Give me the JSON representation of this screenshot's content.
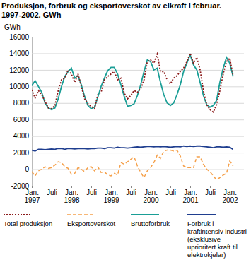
{
  "chart_data": {
    "type": "line",
    "title": "Produksjon, forbruk og eksportoverskot av elkraft i februar. 1997-2002. GWh",
    "y_label": "GWh",
    "categories": [
      "Jan. 1997",
      null,
      null,
      null,
      null,
      null,
      "Juli",
      null,
      null,
      null,
      null,
      null,
      "Jan. 1998",
      null,
      null,
      null,
      null,
      null,
      "Juli",
      null,
      null,
      null,
      null,
      null,
      "Jan. 1999",
      null,
      null,
      null,
      null,
      null,
      "Juli",
      null,
      null,
      null,
      null,
      null,
      "Jan. 2000",
      null,
      null,
      null,
      null,
      null,
      "Juli",
      null,
      null,
      null,
      null,
      null,
      "Jan. 2001",
      null,
      null,
      null,
      null,
      null,
      "Juli",
      null,
      null,
      null,
      null,
      null,
      "Jan. 2002",
      null
    ],
    "ylim": [
      -2000,
      16000
    ],
    "yticks": [
      -2000,
      0,
      2000,
      4000,
      6000,
      8000,
      10000,
      12000,
      14000,
      16000
    ],
    "grid": true,
    "legend": "bottom",
    "series": [
      {
        "name": "Total produksjon",
        "color": "#8b1a1a",
        "line_style": "dotted",
        "values": [
          9600,
          8600,
          9500,
          9000,
          8200,
          7400,
          7300,
          7700,
          9500,
          10800,
          11000,
          12000,
          11500,
          10500,
          11500,
          10000,
          8500,
          7900,
          7600,
          7300,
          9000,
          9300,
          10800,
          11200,
          11500,
          11800,
          10800,
          11000,
          9200,
          8500,
          8900,
          9500,
          9300,
          9700,
          10800,
          13000,
          13200,
          12800,
          13900,
          11800,
          11800,
          10800,
          10300,
          11000,
          11300,
          11800,
          12200,
          13000,
          14000,
          12800,
          13500,
          12000,
          9500,
          7800,
          7200,
          6900,
          7800,
          9500,
          11500,
          13000,
          13400,
          11300
        ]
      },
      {
        "name": "Eksportoverskot",
        "color": "#f5a04a",
        "line_style": "dashed",
        "values": [
          -300,
          -800,
          -200,
          0,
          300,
          100,
          200,
          500,
          900,
          800,
          300,
          100,
          -600,
          -500,
          200,
          0,
          -300,
          200,
          300,
          -200,
          300,
          -400,
          -300,
          -700,
          -800,
          -500,
          -700,
          800,
          600,
          900,
          1200,
          1500,
          400,
          -400,
          -1000,
          -200,
          200,
          800,
          1700,
          1300,
          2200,
          2300,
          2300,
          2200,
          2300,
          1600,
          400,
          200,
          200,
          200,
          1500,
          1500,
          600,
          0,
          -300,
          -800,
          -1300,
          -1000,
          -700,
          -500,
          1000,
          400
        ]
      },
      {
        "name": "Bruttoforbruk",
        "color": "#1a9e96",
        "line_style": "solid",
        "values": [
          10100,
          10700,
          10000,
          9300,
          8000,
          7400,
          7200,
          7400,
          8500,
          10000,
          11200,
          11800,
          12200,
          11000,
          11300,
          10200,
          8800,
          7700,
          7300,
          7500,
          8700,
          10000,
          11000,
          11900,
          12300,
          12300,
          11500,
          10200,
          8800,
          7600,
          7700,
          7900,
          8900,
          10200,
          11800,
          13200,
          13000,
          12000,
          12200,
          10500,
          9000,
          8000,
          7700,
          8000,
          9000,
          10200,
          11800,
          12800,
          13800,
          12600,
          12000,
          10500,
          8900,
          7800,
          7500,
          7700,
          8300,
          10500,
          12200,
          13500,
          12800,
          11200
        ]
      },
      {
        "name": "Forbruk i kraftintensiv industri (eksklusive uprioritert kraft til elektrokjelar)",
        "color": "#1f3e8f",
        "line_style": "solid",
        "values": [
          2300,
          2200,
          2400,
          2400,
          2350,
          2400,
          2450,
          2400,
          2500,
          2500,
          2400,
          2500,
          2500,
          2450,
          2500,
          2500,
          2500,
          2450,
          2500,
          2500,
          2550,
          2550,
          2500,
          2600,
          2600,
          2550,
          2650,
          2600,
          2600,
          2550,
          2600,
          2650,
          2700,
          2650,
          2700,
          2750,
          2750,
          2700,
          2750,
          2700,
          2750,
          2700,
          2650,
          2700,
          2750,
          2700,
          2800,
          2750,
          2800,
          2750,
          2800,
          2800,
          2750,
          2700,
          2650,
          2600,
          2700,
          2700,
          2650,
          2700,
          2650,
          2400
        ]
      }
    ]
  }
}
